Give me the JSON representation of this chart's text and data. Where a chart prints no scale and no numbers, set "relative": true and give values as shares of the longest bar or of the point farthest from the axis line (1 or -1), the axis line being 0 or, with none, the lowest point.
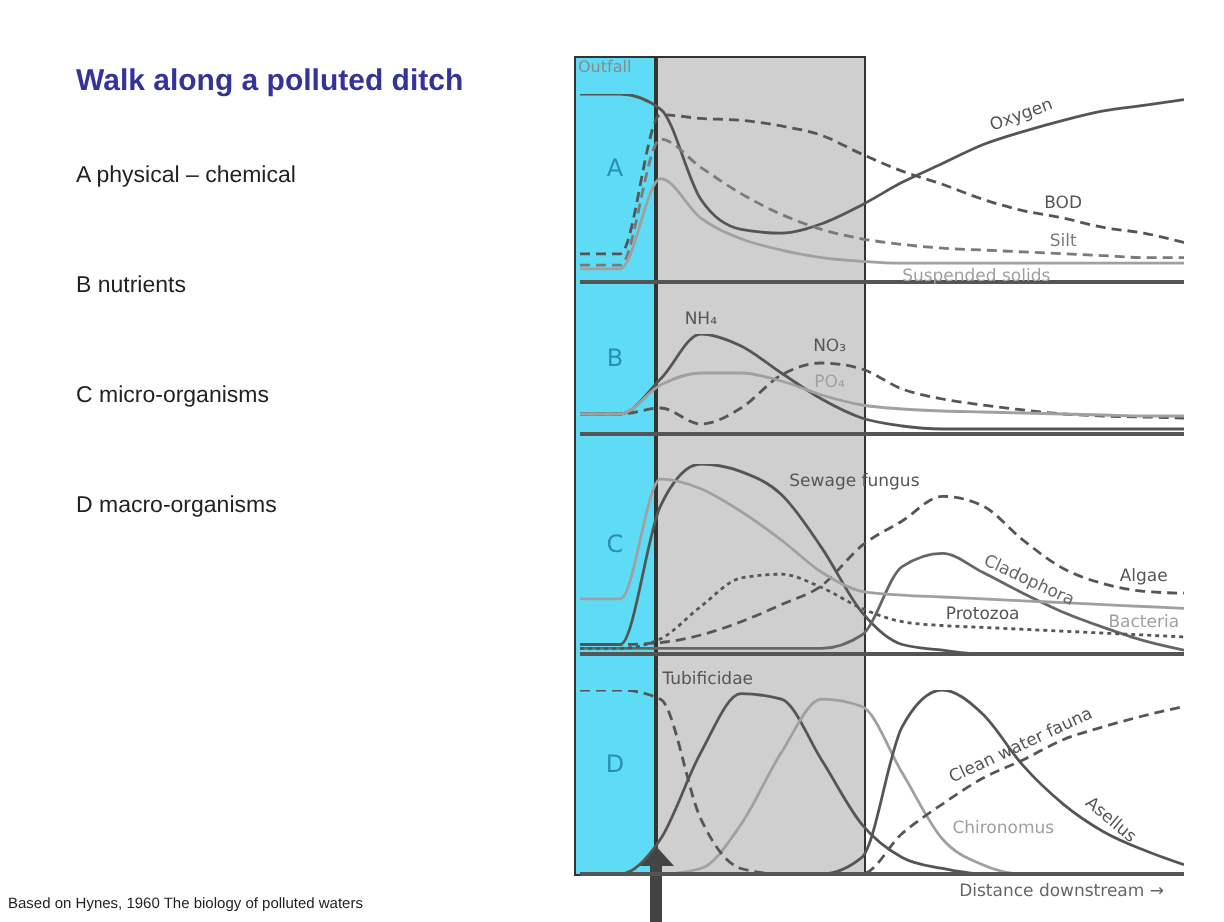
{
  "chart_data": [
    {
      "type": "other",
      "title": "Walk along a polluted ditch",
      "annotations": [
        "A  physical – chemical",
        "B nutrients",
        "C micro-organisms",
        "D macro-organisms",
        "Based on Hynes, 1960 The biology of polluted waters"
      ]
    },
    {
      "type": "line",
      "title": "A",
      "annotations": [
        "Outfall"
      ],
      "relative": true,
      "tick_labels": false,
      "categories": [
        null,
        null,
        null,
        null,
        null,
        null,
        null,
        null,
        null,
        null,
        null,
        null,
        null,
        null,
        null,
        null
      ],
      "series": [
        {
          "name": "Oxygen",
          "color": "#555555",
          "line_style": "solid",
          "values": [
            1,
            1,
            0.92,
            0.44,
            0.28,
            0.26,
            0.31,
            0.41,
            0.53,
            0.63,
            0.73,
            0.8,
            0.86,
            0.91,
            0.94,
            0.97
          ]
        },
        {
          "name": "BOD",
          "color": "#555555",
          "line_style": "dashed",
          "values": [
            0.15,
            0.15,
            0.89,
            0.87,
            0.86,
            0.83,
            0.78,
            0.68,
            0.59,
            0.52,
            0.44,
            0.38,
            0.34,
            0.29,
            0.26,
            0.21
          ]
        },
        {
          "name": "Silt",
          "color": "#7a7a7a",
          "line_style": "dashed",
          "values": [
            0.09,
            0.09,
            0.76,
            0.61,
            0.47,
            0.36,
            0.28,
            0.23,
            0.2,
            0.18,
            0.17,
            0.16,
            0.15,
            0.14,
            0.13,
            0.13
          ]
        },
        {
          "name": "Suspended solids",
          "color": "#a0a0a0",
          "line_style": "solid",
          "values": [
            0.07,
            0.07,
            0.55,
            0.34,
            0.23,
            0.17,
            0.13,
            0.11,
            0.1,
            0.1,
            0.1,
            0.1,
            0.1,
            0.1,
            0.1,
            0.1
          ]
        }
      ]
    },
    {
      "type": "line",
      "title": "B",
      "relative": true,
      "tick_labels": false,
      "categories": [
        null,
        null,
        null,
        null,
        null,
        null,
        null,
        null,
        null,
        null,
        null,
        null,
        null,
        null,
        null,
        null
      ],
      "series": [
        {
          "name": "NH₄",
          "color": "#555555",
          "line_style": "solid",
          "values": [
            0.2,
            0.2,
            0.55,
            1,
            0.88,
            0.61,
            0.35,
            0.16,
            0.08,
            0.05,
            0.05,
            0.05,
            0.05,
            0.05,
            0.05,
            0.05
          ]
        },
        {
          "name": "NO₃",
          "color": "#555555",
          "line_style": "dashed",
          "values": [
            0.2,
            0.2,
            0.26,
            0.1,
            0.26,
            0.59,
            0.71,
            0.65,
            0.45,
            0.35,
            0.29,
            0.24,
            0.2,
            0.18,
            0.17,
            0.16
          ]
        },
        {
          "name": "PO₄",
          "color": "#a0a0a0",
          "line_style": "solid",
          "values": [
            0.2,
            0.2,
            0.49,
            0.61,
            0.61,
            0.53,
            0.39,
            0.29,
            0.25,
            0.23,
            0.22,
            0.21,
            0.2,
            0.19,
            0.18,
            0.18
          ]
        }
      ]
    },
    {
      "type": "line",
      "title": "C",
      "relative": true,
      "tick_labels": false,
      "categories": [
        null,
        null,
        null,
        null,
        null,
        null,
        null,
        null,
        null,
        null,
        null,
        null,
        null,
        null,
        null,
        null
      ],
      "series": [
        {
          "name": "Sewage fungus",
          "color": "#555555",
          "line_style": "solid",
          "values": [
            0.05,
            0.05,
            0.78,
            1,
            0.96,
            0.84,
            0.56,
            0.22,
            0.05,
            0.02,
            0,
            0,
            0,
            0,
            0,
            0
          ]
        },
        {
          "name": "Algae",
          "color": "#555555",
          "line_style": "dashed",
          "values": [
            0.05,
            0.05,
            0.06,
            0.1,
            0.17,
            0.26,
            0.36,
            0.57,
            0.7,
            0.83,
            0.78,
            0.6,
            0.45,
            0.37,
            0.33,
            0.32
          ]
        },
        {
          "name": "Cladophora",
          "color": "#666666",
          "line_style": "solid",
          "values": [
            0.03,
            0.03,
            0.03,
            0.03,
            0.03,
            0.03,
            0.03,
            0.1,
            0.46,
            0.53,
            0.43,
            0.32,
            0.22,
            0.14,
            0.07,
            0.02
          ]
        },
        {
          "name": "Bacteria",
          "color": "#a0a0a0",
          "line_style": "solid",
          "values": [
            0.29,
            0.29,
            0.92,
            0.87,
            0.75,
            0.6,
            0.43,
            0.33,
            0.31,
            0.3,
            0.29,
            0.28,
            0.27,
            0.26,
            0.25,
            0.24
          ]
        },
        {
          "name": "Protozoa",
          "color": "#555555",
          "line_style": "dotted",
          "values": [
            0.03,
            0.03,
            0.08,
            0.25,
            0.4,
            0.42,
            0.35,
            0.24,
            0.17,
            0.15,
            0.14,
            0.13,
            0.12,
            0.11,
            0.1,
            0.09
          ]
        }
      ]
    },
    {
      "type": "line",
      "title": "D",
      "xlabel": "Distance downstream →",
      "relative": true,
      "tick_labels": false,
      "categories": [
        null,
        null,
        null,
        null,
        null,
        null,
        null,
        null,
        null,
        null,
        null,
        null,
        null,
        null,
        null,
        null
      ],
      "series": [
        {
          "name": "Tubificidae",
          "color": "#555555",
          "line_style": "solid",
          "values": [
            0,
            0,
            0.19,
            0.66,
            0.98,
            0.95,
            0.62,
            0.27,
            0.09,
            0.03,
            0,
            0,
            0,
            0,
            0,
            0
          ]
        },
        {
          "name": "Chironomus",
          "color": "#a0a0a0",
          "line_style": "solid",
          "values": [
            0,
            0,
            0,
            0.03,
            0.27,
            0.66,
            0.95,
            0.91,
            0.55,
            0.19,
            0.05,
            0,
            0,
            0,
            0,
            0
          ]
        },
        {
          "name": "Asellus",
          "color": "#555555",
          "line_style": "solid",
          "values": [
            0,
            0,
            0,
            0,
            0,
            0,
            0,
            0.09,
            0.8,
            1,
            0.87,
            0.59,
            0.38,
            0.23,
            0.13,
            0.05
          ]
        },
        {
          "name": "Clean water fauna",
          "color": "#555555",
          "line_style": "dashed",
          "values": [
            1,
            1,
            0.95,
            0.3,
            0.03,
            0,
            0,
            0,
            0.22,
            0.38,
            0.52,
            0.62,
            0.73,
            0.8,
            0.86,
            0.91
          ]
        }
      ]
    }
  ]
}
